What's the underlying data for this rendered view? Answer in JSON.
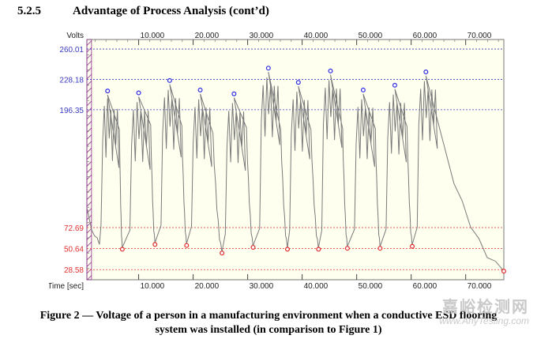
{
  "heading": {
    "number": "5.2.5",
    "title": "Advantage of Process Analysis (cont’d)"
  },
  "chart_data": {
    "type": "line",
    "ylabel": "Volts",
    "xlabel": "Time [sec]",
    "x_tick_labels": [
      "10.000",
      "20.000",
      "30.000",
      "40.000",
      "50.000",
      "60.000",
      "70.000"
    ],
    "x_ticks": [
      10,
      20,
      30,
      40,
      50,
      60,
      70
    ],
    "xlim": [
      0.5,
      77
    ],
    "ylim": [
      18,
      270
    ],
    "y_ref_lines_high": [
      {
        "label": "260.01",
        "value": 260.01
      },
      {
        "label": "228.18",
        "value": 228.18
      },
      {
        "label": "196.35",
        "value": 196.35
      }
    ],
    "y_ref_lines_low": [
      {
        "label": "72.69",
        "value": 72.69
      },
      {
        "label": "50.64",
        "value": 50.64
      },
      {
        "label": "28.58",
        "value": 28.58
      }
    ],
    "peaks": [
      {
        "x": 4.3,
        "y": 216
      },
      {
        "x": 10.0,
        "y": 214
      },
      {
        "x": 15.7,
        "y": 227
      },
      {
        "x": 21.3,
        "y": 217
      },
      {
        "x": 27.5,
        "y": 213
      },
      {
        "x": 33.8,
        "y": 240
      },
      {
        "x": 39.3,
        "y": 225
      },
      {
        "x": 45.2,
        "y": 237
      },
      {
        "x": 51.2,
        "y": 217
      },
      {
        "x": 57.0,
        "y": 222
      },
      {
        "x": 62.7,
        "y": 236
      }
    ],
    "troughs": [
      {
        "x": 7.0,
        "y": 50
      },
      {
        "x": 13.0,
        "y": 55
      },
      {
        "x": 18.8,
        "y": 54
      },
      {
        "x": 25.3,
        "y": 46
      },
      {
        "x": 31.0,
        "y": 52
      },
      {
        "x": 37.3,
        "y": 50
      },
      {
        "x": 43.0,
        "y": 50
      },
      {
        "x": 48.3,
        "y": 51
      },
      {
        "x": 54.3,
        "y": 51
      },
      {
        "x": 60.2,
        "y": 53
      },
      {
        "x": 77.0,
        "y": 27
      }
    ],
    "colors": {
      "peak_marker": "#2a2ae0",
      "trough_marker": "#e02a2a",
      "trace": "#7a7a7a",
      "high_lines": "#3a3ac0",
      "low_lines": "#e03030",
      "plot_bg": "#fffff0",
      "hatch": "#8a2a8a"
    }
  },
  "caption": {
    "line1": "Figure 2 — Voltage of a person in a manufacturing environment when a conductive ESD flooring",
    "line2": "system was installed (in comparison to Figure 1)"
  },
  "watermark": {
    "cn": "嘉峪检测网",
    "en": "www.AnyTesting.com"
  }
}
